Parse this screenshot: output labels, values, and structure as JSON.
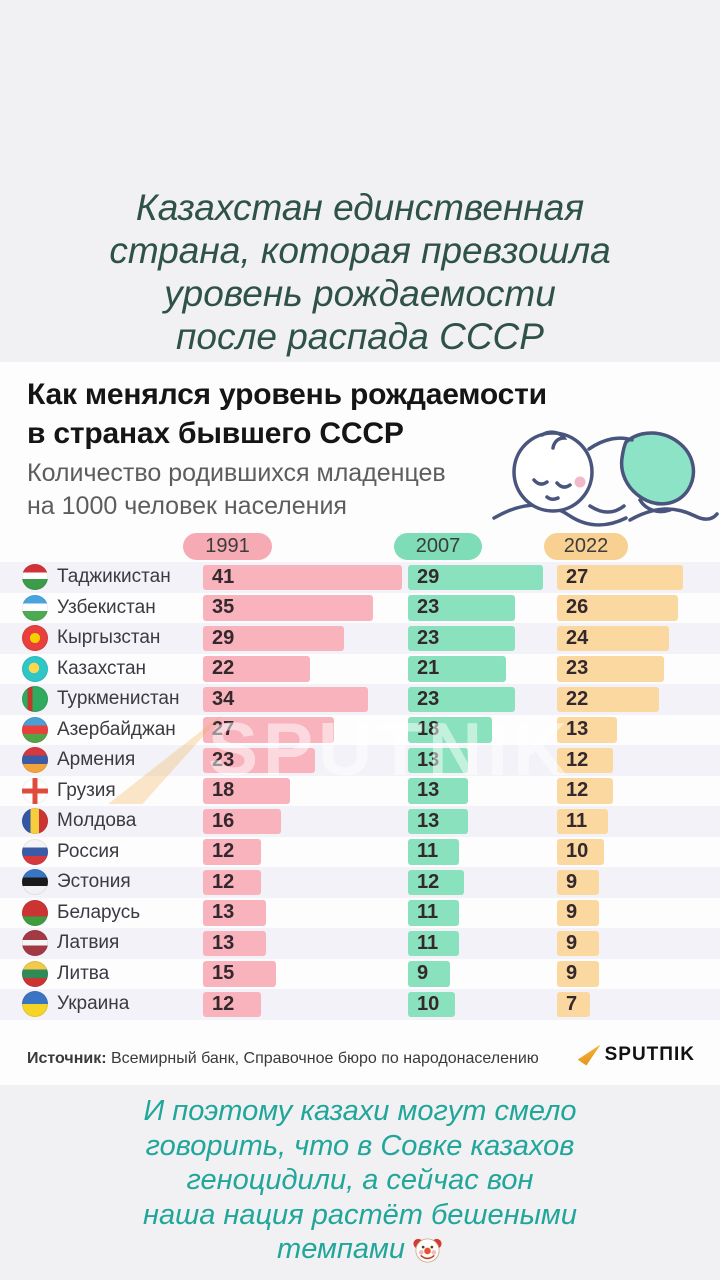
{
  "top_caption": {
    "lines": [
      "Казахстан единственная",
      "страна, которая превзошла",
      "уровень рождаемости",
      "после распада СССР"
    ],
    "color": "#2e5246"
  },
  "infographic": {
    "title_line1": "Как менялся уровень рождаемости",
    "title_line2": "в странах бывшего СССР",
    "subtitle_line1": "Количество родившихся младенцев",
    "subtitle_line2": "на 1000 человек населения",
    "watermark": "SPUTNIK",
    "columns": [
      {
        "year": "1991",
        "pill_color": "#f6aab4",
        "bar_color": "#f8b3bc"
      },
      {
        "year": "2007",
        "pill_color": "#7edcb6",
        "bar_color": "#89e2bd"
      },
      {
        "year": "2022",
        "pill_color": "#f8d092",
        "bar_color": "#fbd89f"
      }
    ],
    "rows": [
      {
        "country": "Таджикистан",
        "flag": "tj",
        "values": [
          41,
          29,
          27
        ]
      },
      {
        "country": "Узбекистан",
        "flag": "uz",
        "values": [
          35,
          23,
          26
        ]
      },
      {
        "country": "Кыргызстан",
        "flag": "kg",
        "values": [
          29,
          23,
          24
        ]
      },
      {
        "country": "Казахстан",
        "flag": "kz",
        "values": [
          22,
          21,
          23
        ]
      },
      {
        "country": "Туркменистан",
        "flag": "tm",
        "values": [
          34,
          23,
          22
        ]
      },
      {
        "country": "Азербайджан",
        "flag": "az",
        "values": [
          27,
          18,
          13
        ]
      },
      {
        "country": "Армения",
        "flag": "am",
        "values": [
          23,
          13,
          12
        ]
      },
      {
        "country": "Грузия",
        "flag": "ge",
        "values": [
          18,
          13,
          12
        ]
      },
      {
        "country": "Молдова",
        "flag": "md",
        "values": [
          16,
          13,
          11
        ]
      },
      {
        "country": "Россия",
        "flag": "ru",
        "values": [
          12,
          11,
          10
        ]
      },
      {
        "country": "Эстония",
        "flag": "ee",
        "values": [
          12,
          12,
          9
        ]
      },
      {
        "country": "Беларусь",
        "flag": "by",
        "values": [
          13,
          11,
          9
        ]
      },
      {
        "country": "Латвия",
        "flag": "lv",
        "values": [
          13,
          11,
          9
        ]
      },
      {
        "country": "Литва",
        "flag": "lt",
        "values": [
          15,
          9,
          9
        ]
      },
      {
        "country": "Украина",
        "flag": "ua",
        "values": [
          12,
          10,
          7
        ]
      }
    ],
    "source": {
      "label": "Источник:",
      "text": "Всемирный банк, Справочное бюро по народонаселению"
    },
    "logo_text": "SPUTΠIK",
    "logo_arrow_color": "#f39c1f"
  },
  "bottom_caption": {
    "lines": [
      "И поэтому казахи могут смело",
      "говорить, что в Совке казахов",
      "геноцидили, а сейчас вон",
      "наша нация растёт бешеными",
      "темпами"
    ],
    "emoji": "clown-face",
    "color": "#20a69a"
  },
  "chart_data": {
    "type": "bar",
    "orientation": "horizontal",
    "title": "Как менялся уровень рождаемости в странах бывшего СССР",
    "subtitle": "Количество родившихся младенцев на 1000 человек населения",
    "categories": [
      "Таджикистан",
      "Узбекистан",
      "Кыргызстан",
      "Казахстан",
      "Туркменистан",
      "Азербайджан",
      "Армения",
      "Грузия",
      "Молдова",
      "Россия",
      "Эстония",
      "Беларусь",
      "Латвия",
      "Литва",
      "Украина"
    ],
    "series": [
      {
        "name": "1991",
        "color": "#f8b3bc",
        "values": [
          41,
          35,
          29,
          22,
          34,
          27,
          23,
          18,
          16,
          12,
          12,
          13,
          13,
          15,
          12
        ]
      },
      {
        "name": "2007",
        "color": "#89e2bd",
        "values": [
          29,
          23,
          23,
          21,
          23,
          18,
          13,
          13,
          13,
          11,
          12,
          11,
          11,
          9,
          10
        ]
      },
      {
        "name": "2022",
        "color": "#fbd89f",
        "values": [
          27,
          26,
          24,
          23,
          22,
          13,
          12,
          12,
          11,
          10,
          9,
          9,
          9,
          9,
          7
        ]
      }
    ],
    "xlim": [
      0,
      41
    ],
    "grid": false,
    "legend_position": "top",
    "source": "Всемирный банк, Справочное бюро по народонаселению"
  }
}
